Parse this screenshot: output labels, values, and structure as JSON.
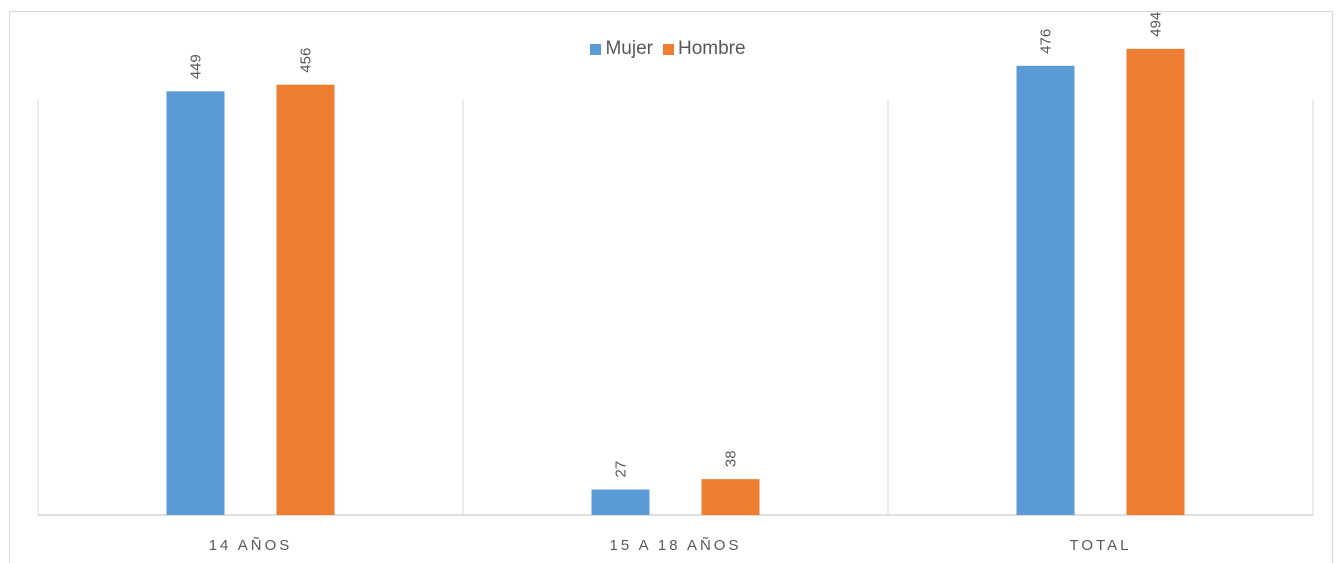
{
  "chart_data": {
    "type": "bar",
    "categories": [
      "14 AÑOS",
      "15 A 18 AÑOS",
      "TOTAL"
    ],
    "series": [
      {
        "name": "Mujer",
        "values": [
          449,
          27,
          476
        ],
        "color": "#5B9BD5"
      },
      {
        "name": "Hombre",
        "values": [
          456,
          38,
          494
        ],
        "color": "#ED7D31"
      }
    ],
    "ylim": [
      0,
      550
    ],
    "grid": false,
    "legend": "top-center",
    "data_labels": true,
    "data_label_rotation": "vertical"
  }
}
